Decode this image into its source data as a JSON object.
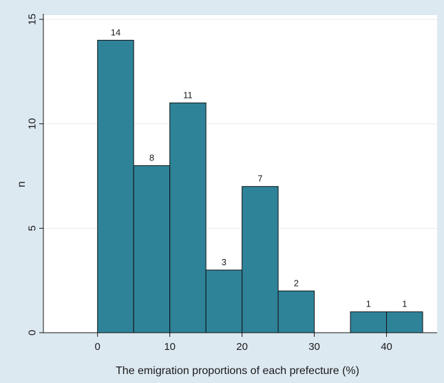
{
  "chart_data": {
    "type": "bar",
    "subtype": "histogram",
    "title": "",
    "xlabel": "The emigration proportions of each prefecture (%)",
    "ylabel": "n",
    "xlim": [
      -7.5,
      47
    ],
    "ylim": [
      0,
      15.2
    ],
    "xticks": [
      0,
      10,
      20,
      30,
      40
    ],
    "yticks": [
      0,
      5,
      10,
      15
    ],
    "bins": [
      {
        "x0": 0,
        "x1": 5,
        "count": 14
      },
      {
        "x0": 5,
        "x1": 10,
        "count": 8
      },
      {
        "x0": 10,
        "x1": 15,
        "count": 11
      },
      {
        "x0": 15,
        "x1": 20,
        "count": 3
      },
      {
        "x0": 20,
        "x1": 25,
        "count": 7
      },
      {
        "x0": 25,
        "x1": 30,
        "count": 2
      },
      {
        "x0": 35,
        "x1": 40,
        "count": 1
      },
      {
        "x0": 40,
        "x1": 45,
        "count": 1
      }
    ],
    "grid": true,
    "colors": {
      "bar": "#2e8399",
      "bar_edge": "#111111",
      "plot_background": "#ffffff",
      "outer_background": "#dde9f1",
      "gridline": "#e6eaee"
    }
  }
}
